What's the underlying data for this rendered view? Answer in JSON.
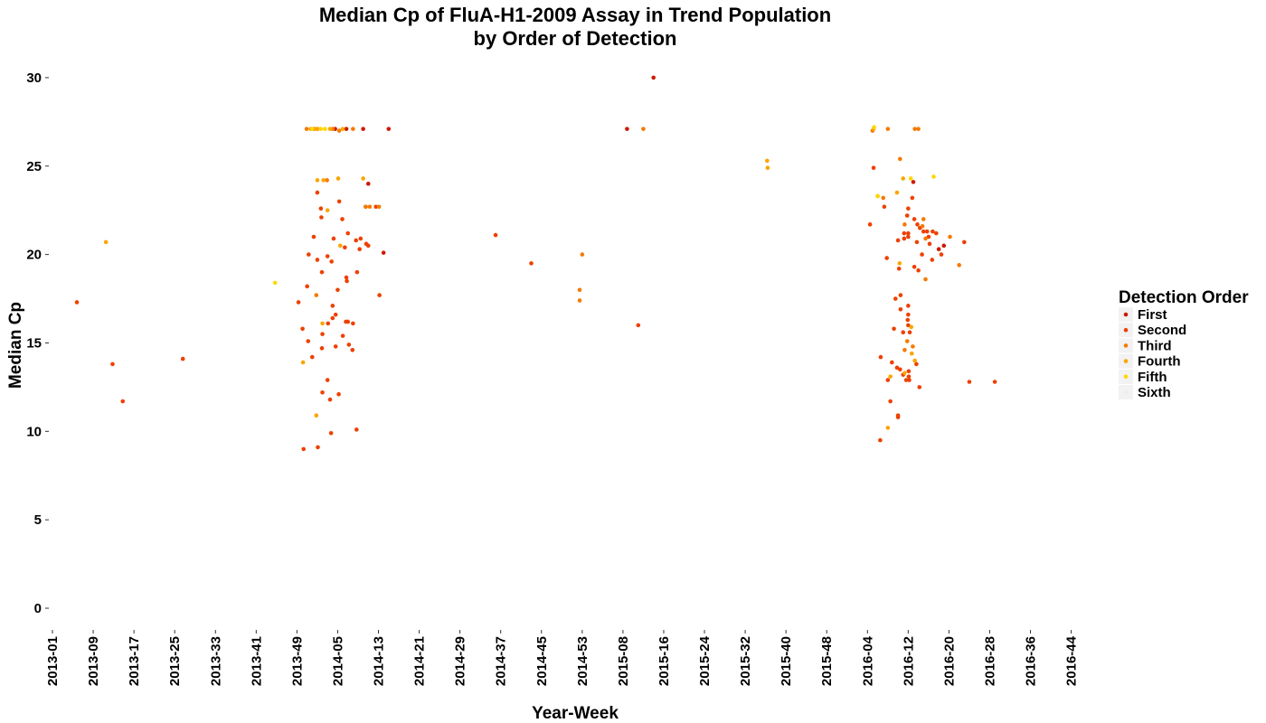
{
  "chart_data": {
    "type": "scatter",
    "title": "Median Cp of FluA-H1-2009 Assay in Trend Population",
    "subtitle": "by Order of Detection",
    "xlabel": "Year-Week",
    "ylabel": "Median Cp",
    "ylim": [
      0,
      30
    ],
    "y_ticks": [
      0,
      5,
      10,
      15,
      20,
      25,
      30
    ],
    "x_ticks": [
      "2013-01",
      "2013-09",
      "2013-17",
      "2013-25",
      "2013-33",
      "2013-41",
      "2013-49",
      "2014-05",
      "2014-13",
      "2014-21",
      "2014-29",
      "2014-37",
      "2014-45",
      "2014-53",
      "2015-08",
      "2015-16",
      "2015-24",
      "2015-32",
      "2015-40",
      "2015-48",
      "2016-04",
      "2016-12",
      "2016-20",
      "2016-28",
      "2016-36",
      "2016-44"
    ],
    "x_unit_note": "x values are week indices on the axis where 0 = 2013-01 and each tick is 8 weeks apart",
    "grid": false,
    "legend": {
      "title": "Detection Order",
      "position": "right",
      "entries": [
        {
          "name": "First",
          "color": "#cc1a00"
        },
        {
          "name": "Second",
          "color": "#ee4000"
        },
        {
          "name": "Third",
          "color": "#f57a00"
        },
        {
          "name": "Fourth",
          "color": "#faa500"
        },
        {
          "name": "Fifth",
          "color": "#ffd700"
        },
        {
          "name": "Sixth",
          "color": "#eeeeee"
        }
      ]
    },
    "series": [
      {
        "name": "First",
        "color": "#cc1a00",
        "points": [
          [
            55.5,
            27.1
          ],
          [
            57.7,
            27.1
          ],
          [
            61,
            27.1
          ],
          [
            62,
            24
          ],
          [
            65,
            20.1
          ],
          [
            66,
            27.1
          ],
          [
            112.8,
            27.1
          ],
          [
            118,
            30
          ],
          [
            169,
            24.1
          ],
          [
            174,
            20.3
          ],
          [
            175,
            20.5
          ]
        ]
      },
      {
        "name": "Second",
        "color": "#ee4000",
        "points": [
          [
            4.8,
            17.3
          ],
          [
            11.8,
            13.8
          ],
          [
            13.8,
            11.7
          ],
          [
            25.6,
            14.1
          ],
          [
            48.3,
            17.3
          ],
          [
            49.1,
            15.8
          ],
          [
            49.3,
            9
          ],
          [
            50,
            18.2
          ],
          [
            50.2,
            15.1
          ],
          [
            50.3,
            20
          ],
          [
            51,
            14.2
          ],
          [
            51.3,
            21
          ],
          [
            52,
            19.7
          ],
          [
            52,
            23.5
          ],
          [
            52.1,
            9.1
          ],
          [
            52.7,
            22.6
          ],
          [
            52.8,
            22.1
          ],
          [
            52.9,
            19
          ],
          [
            52.9,
            14.7
          ],
          [
            53,
            15.5
          ],
          [
            53,
            12.2
          ],
          [
            54,
            12.9
          ],
          [
            54,
            19.9
          ],
          [
            54.1,
            16.1
          ],
          [
            54.5,
            11.8
          ],
          [
            54.7,
            9.9
          ],
          [
            54.8,
            19.6
          ],
          [
            55,
            16.4
          ],
          [
            55,
            17.1
          ],
          [
            55.2,
            20.9
          ],
          [
            55.6,
            16.6
          ],
          [
            55.6,
            14.8
          ],
          [
            56,
            18
          ],
          [
            56.2,
            12.1
          ],
          [
            56.3,
            23
          ],
          [
            56.9,
            22
          ],
          [
            57,
            15.4
          ],
          [
            57.4,
            20.4
          ],
          [
            57.6,
            16.2
          ],
          [
            57.7,
            18.7
          ],
          [
            57.8,
            18.5
          ],
          [
            58,
            16.2
          ],
          [
            58,
            21.2
          ],
          [
            58.2,
            14.9
          ],
          [
            58.9,
            14.6
          ],
          [
            59,
            16.1
          ],
          [
            59.6,
            20.8
          ],
          [
            59.7,
            10.1
          ],
          [
            59.8,
            19
          ],
          [
            60.3,
            20.3
          ],
          [
            60.5,
            20.9
          ],
          [
            61.5,
            22.7
          ],
          [
            61.6,
            20.6
          ],
          [
            62,
            20.5
          ],
          [
            63.5,
            22.7
          ],
          [
            64.2,
            17.7
          ],
          [
            87,
            21.1
          ],
          [
            94,
            19.5
          ],
          [
            115,
            16
          ],
          [
            160.5,
            21.7
          ],
          [
            161.2,
            24.9
          ],
          [
            162.5,
            9.5
          ],
          [
            162.6,
            14.2
          ],
          [
            163.3,
            22.7
          ],
          [
            163.8,
            19.8
          ],
          [
            164,
            12.9
          ],
          [
            164.5,
            11.7
          ],
          [
            164.8,
            13.9
          ],
          [
            165.2,
            15.8
          ],
          [
            165.5,
            17.5
          ],
          [
            165.8,
            13.6
          ],
          [
            166,
            10.9
          ],
          [
            166,
            10.8
          ],
          [
            166,
            20.8
          ],
          [
            166.2,
            19.2
          ],
          [
            166.4,
            13.5
          ],
          [
            166.5,
            17.7
          ],
          [
            166.5,
            16.9
          ],
          [
            167,
            13.2
          ],
          [
            167,
            15.6
          ],
          [
            167.2,
            21.2
          ],
          [
            167.2,
            20.9
          ],
          [
            167.6,
            12.9
          ],
          [
            167.8,
            22.2
          ],
          [
            167.9,
            16.3
          ],
          [
            168,
            16.6
          ],
          [
            168,
            16
          ],
          [
            168,
            17.1
          ],
          [
            168,
            22.6
          ],
          [
            168,
            21.2
          ],
          [
            168,
            21
          ],
          [
            168.1,
            13.4
          ],
          [
            168.1,
            13.1
          ],
          [
            168.2,
            12.9
          ],
          [
            168.3,
            15.6
          ],
          [
            168.8,
            23.2
          ],
          [
            169.2,
            19.3
          ],
          [
            169.2,
            22
          ],
          [
            169.6,
            13.8
          ],
          [
            169.7,
            20.7
          ],
          [
            169.8,
            21.7
          ],
          [
            170,
            19.1
          ],
          [
            170.2,
            12.5
          ],
          [
            170.3,
            21.5
          ],
          [
            170.7,
            20
          ],
          [
            171,
            21.3
          ],
          [
            171.7,
            21.3
          ],
          [
            172,
            21
          ],
          [
            172.2,
            20.6
          ],
          [
            172.7,
            19.7
          ],
          [
            172.8,
            21.3
          ],
          [
            173.5,
            21.2
          ],
          [
            174.5,
            20
          ],
          [
            179,
            20.7
          ],
          [
            180,
            12.8
          ],
          [
            185,
            12.8
          ]
        ]
      },
      {
        "name": "Third",
        "color": "#f57a00",
        "points": [
          [
            49.9,
            27.1
          ],
          [
            51.3,
            27.1
          ],
          [
            51.8,
            17.7
          ],
          [
            53.9,
            24.2
          ],
          [
            55,
            27.1
          ],
          [
            56.3,
            27
          ],
          [
            59,
            27.1
          ],
          [
            61.5,
            22.7
          ],
          [
            62.3,
            22.7
          ],
          [
            64.1,
            22.7
          ],
          [
            116,
            27.1
          ],
          [
            104,
            20
          ],
          [
            103.5,
            17.4
          ],
          [
            103.5,
            18
          ],
          [
            161,
            27
          ],
          [
            162,
            23.3
          ],
          [
            163.1,
            23.2
          ],
          [
            164,
            27.1
          ],
          [
            166.4,
            25.4
          ],
          [
            167.3,
            21.7
          ],
          [
            167.3,
            14.6
          ],
          [
            167.8,
            15.1
          ],
          [
            168.9,
            14.8
          ],
          [
            169.3,
            27.1
          ],
          [
            170,
            27.1
          ],
          [
            170.8,
            21.6
          ],
          [
            171,
            22
          ],
          [
            171.4,
            20.9
          ],
          [
            171.4,
            18.6
          ],
          [
            176.2,
            21
          ],
          [
            178,
            19.4
          ]
        ]
      },
      {
        "name": "Fourth",
        "color": "#faa500",
        "points": [
          [
            10.5,
            20.7
          ],
          [
            49.2,
            13.9
          ],
          [
            50.7,
            27.1
          ],
          [
            51.8,
            10.9
          ],
          [
            51.8,
            27.1
          ],
          [
            52.1,
            27.1
          ],
          [
            52,
            24.2
          ],
          [
            53,
            16.1
          ],
          [
            53.2,
            24.2
          ],
          [
            54,
            22.5
          ],
          [
            54.5,
            27.1
          ],
          [
            56.1,
            24.3
          ],
          [
            56.5,
            20.5
          ],
          [
            57,
            27.1
          ],
          [
            61,
            24.3
          ],
          [
            140.3,
            25.3
          ],
          [
            140.4,
            24.9
          ],
          [
            161.2,
            27.1
          ],
          [
            164,
            10.2
          ],
          [
            164.5,
            13.1
          ],
          [
            165.8,
            23.5
          ],
          [
            166.3,
            19.5
          ],
          [
            167,
            24.3
          ],
          [
            167.3,
            13.3
          ],
          [
            168.6,
            15.9
          ],
          [
            168.7,
            14.4
          ],
          [
            169.3,
            14
          ]
        ]
      },
      {
        "name": "Fifth",
        "color": "#ffd700",
        "points": [
          [
            43.7,
            18.4
          ],
          [
            51,
            27.1
          ],
          [
            52.7,
            27.1
          ],
          [
            53.5,
            27.1
          ],
          [
            162,
            23.3
          ],
          [
            168.5,
            24.3
          ],
          [
            173,
            24.4
          ],
          [
            161.3,
            27.2
          ]
        ]
      },
      {
        "name": "Sixth",
        "color": "#eeeeee",
        "points": []
      }
    ]
  }
}
